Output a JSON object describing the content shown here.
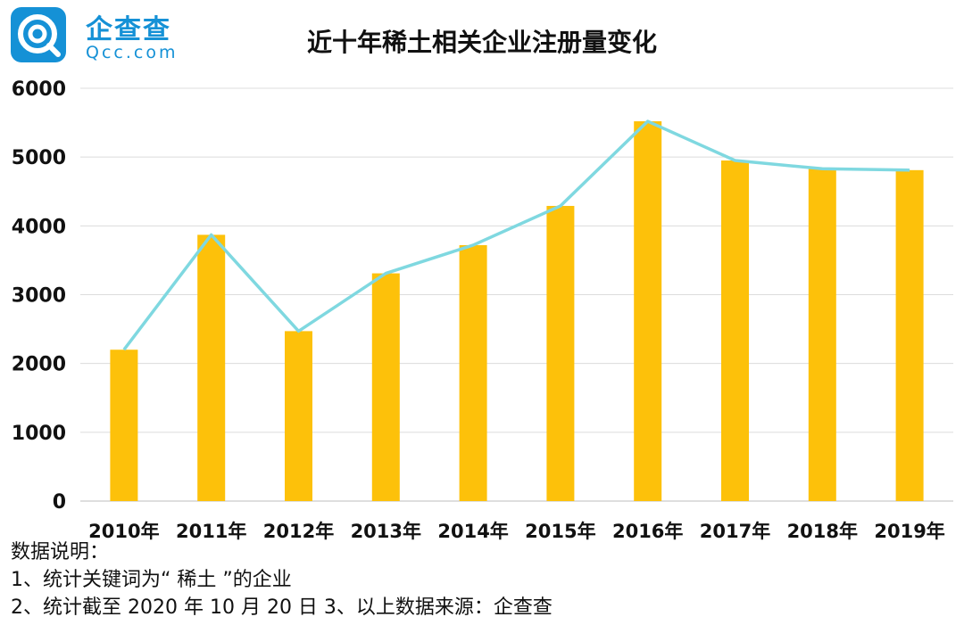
{
  "logo": {
    "brand_cn": "企查查",
    "brand_en": "Qcc.com",
    "color": "#1591d6",
    "icon": "qcc-logo-icon"
  },
  "chart_data": {
    "type": "bar",
    "title": "近十年稀土相关企业注册量变化",
    "categories": [
      "2010年",
      "2011年",
      "2012年",
      "2013年",
      "2014年",
      "2015年",
      "2016年",
      "2017年",
      "2018年",
      "2019年"
    ],
    "values": [
      2200,
      3870,
      2470,
      3310,
      3720,
      4290,
      5520,
      4950,
      4830,
      4810
    ],
    "overlay_line": true,
    "ylim": [
      0,
      6000
    ],
    "yticks": [
      0,
      1000,
      2000,
      3000,
      4000,
      5000,
      6000
    ],
    "grid": true,
    "legend": "none",
    "bar_color": "#fdc10a",
    "line_color": "#7fd8e0"
  },
  "notes": {
    "heading": "数据说明：",
    "line1": "1、统计关键词为“ 稀土 ”的企业",
    "line2": "2、统计截至 2020 年 10 月 20 日  3、以上数据来源：企查查"
  }
}
